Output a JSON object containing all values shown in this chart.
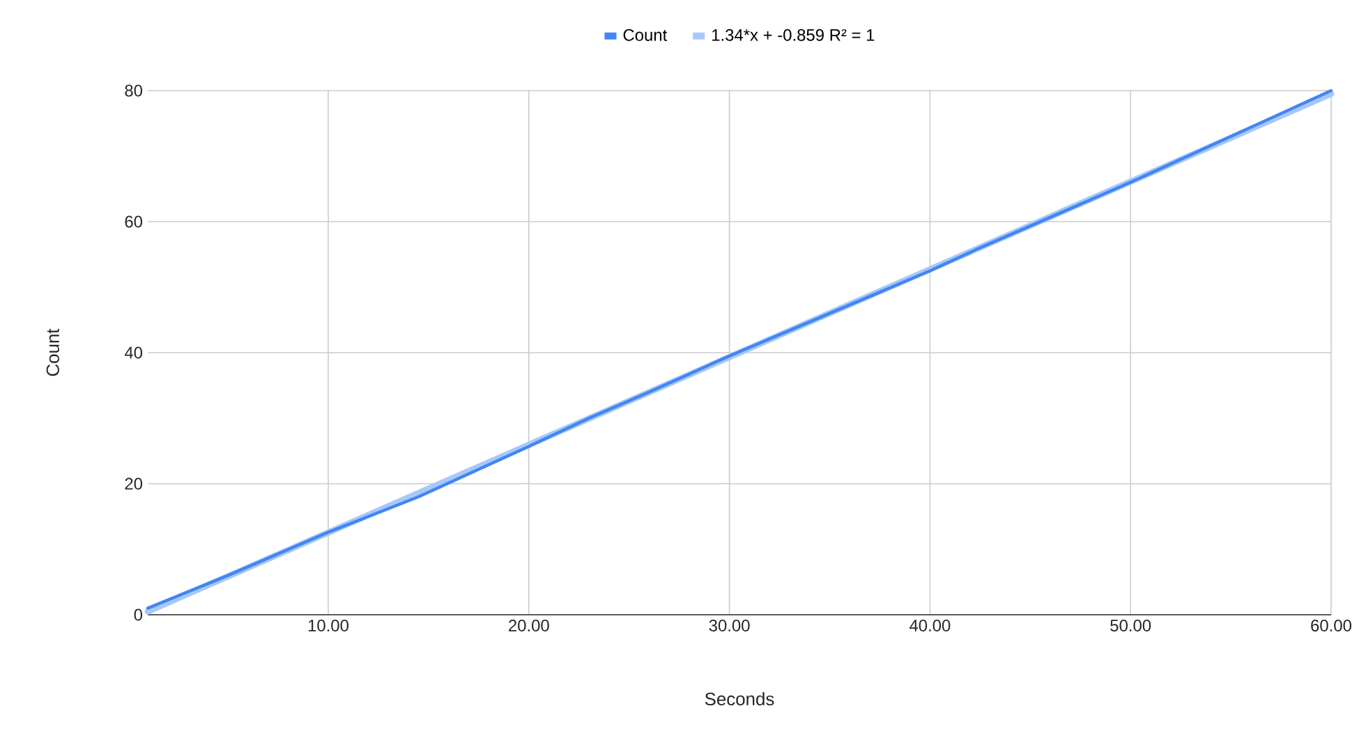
{
  "chart_data": {
    "type": "line",
    "xlabel": "Seconds",
    "ylabel": "Count",
    "series": [
      {
        "name": "Count",
        "color": "#4285f4",
        "x": [
          1,
          5,
          10,
          14.5,
          20,
          23,
          26,
          30,
          35,
          40,
          42.5,
          50,
          55,
          60
        ],
        "values": [
          1,
          6,
          12.6,
          18,
          25.7,
          30,
          34,
          39.5,
          46,
          52.5,
          56,
          66,
          73,
          80
        ]
      },
      {
        "name": "1.34*x + -0.859 R² = 1",
        "color": "#a6c8fa",
        "type": "line",
        "x": [
          1,
          60
        ],
        "values": [
          0.5,
          79.5
        ]
      }
    ],
    "xlim": [
      1,
      60
    ],
    "ylim": [
      0,
      80
    ],
    "xticks": [
      {
        "value": 10,
        "label": "10.00"
      },
      {
        "value": 20,
        "label": "20.00"
      },
      {
        "value": 30,
        "label": "30.00"
      },
      {
        "value": 40,
        "label": "40.00"
      },
      {
        "value": 50,
        "label": "50.00"
      },
      {
        "value": 60,
        "label": "60.00"
      }
    ],
    "yticks": [
      0,
      20,
      40,
      60,
      80
    ],
    "grid": true,
    "legend": "top"
  }
}
